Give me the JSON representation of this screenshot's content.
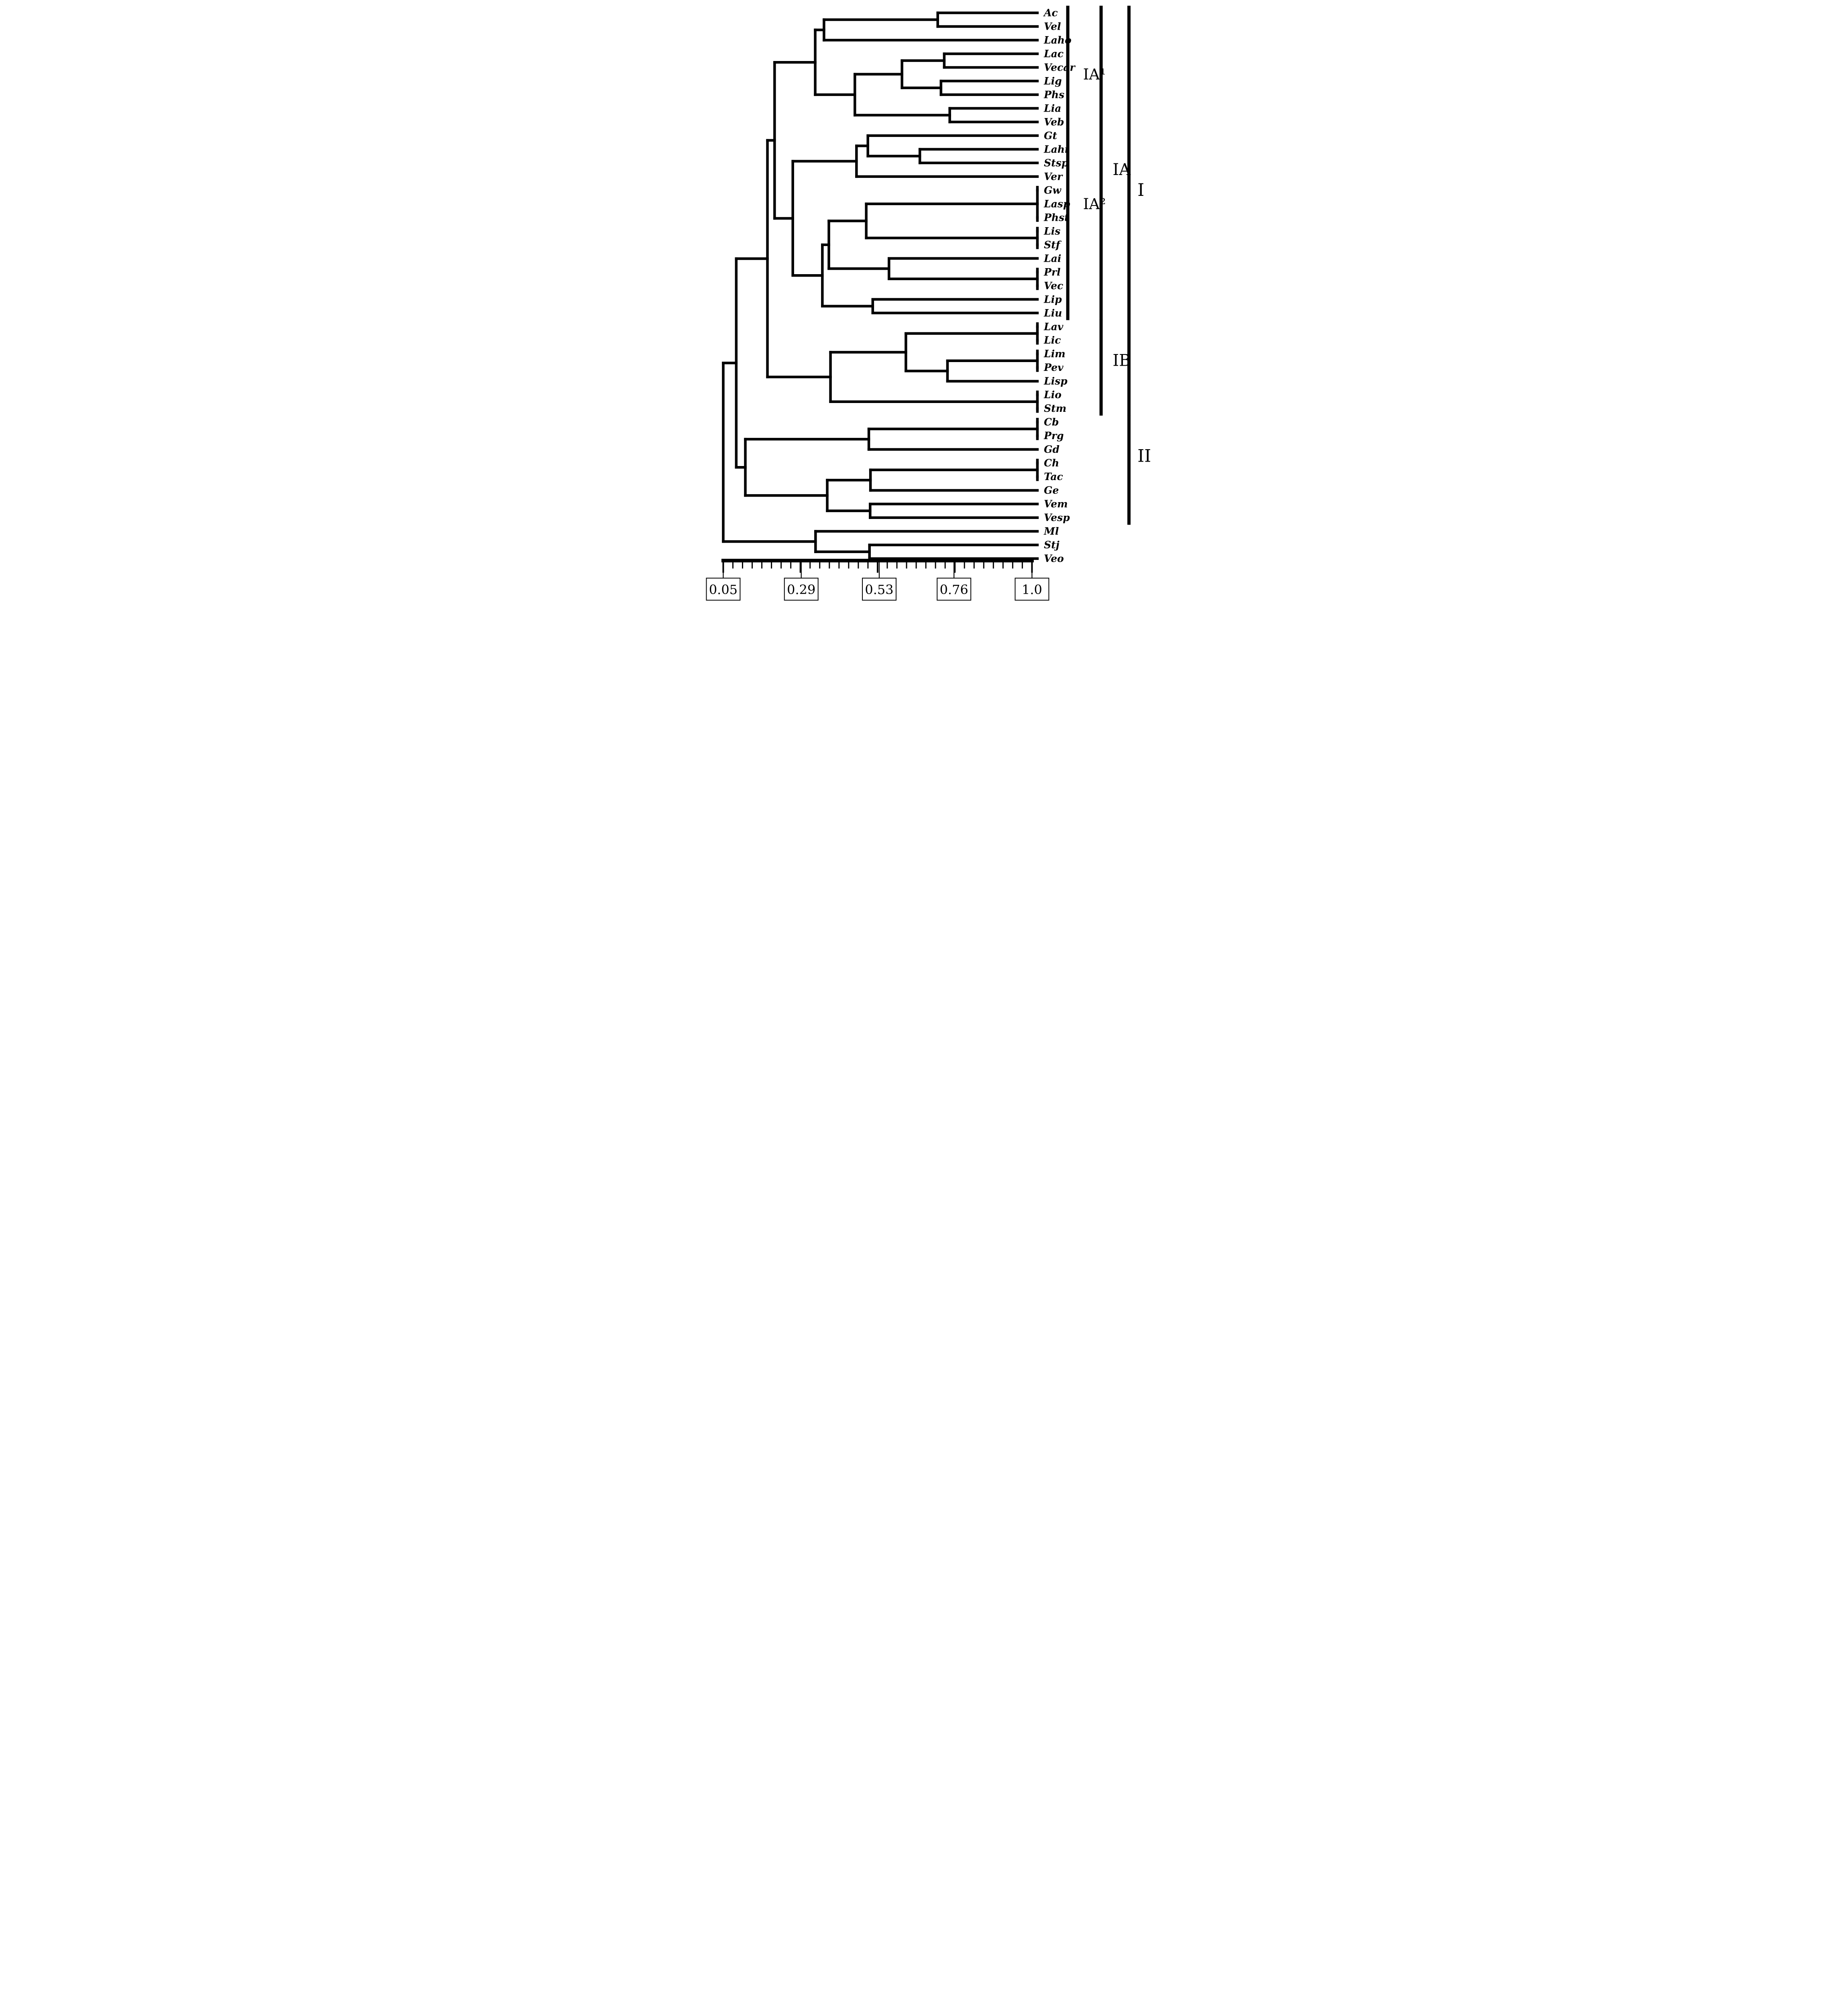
{
  "figure": {
    "kind": "UPGMA-style similarity dendrogram, leaves on right, scanned black-and-white scientific figure",
    "background_color": "#ffffff",
    "ink_color": "#000000"
  },
  "chart_data": {
    "type": "dendrogram",
    "orientation": "horizontal, root at left, similarity increasing to the right",
    "title": "",
    "xlabel": "",
    "ylabel": "",
    "axis": {
      "range": [
        0.05,
        1.0
      ],
      "boxed_tick_labels": [
        "0.05",
        "0.29",
        "0.53",
        "0.76",
        "1.0"
      ],
      "boxed_tick_values": [
        0.05,
        0.29,
        0.53,
        0.76,
        1.0
      ],
      "minor_tick_count": 33,
      "position": "bottom"
    },
    "leaves": [
      "Ac",
      "Vel",
      "Laho",
      "Lac",
      "Vecar",
      "Lig",
      "Phs",
      "Lia",
      "Veb",
      "Gt",
      "Lahi",
      "Stsp",
      "Ver",
      "Gw",
      "Lasp",
      "Phst",
      "Lis",
      "Stf",
      "Lai",
      "Prl",
      "Vec",
      "Lip",
      "Liu",
      "Lav",
      "Lic",
      "Lim",
      "Pev",
      "Lisp",
      "Lio",
      "Stm",
      "Cb",
      "Prg",
      "Gd",
      "Ch",
      "Tac",
      "Ge",
      "Vem",
      "Vesp",
      "Ml",
      "Stj",
      "Veo"
    ],
    "root": {
      "h": 0.05,
      "c": [
        {
          "h": 0.09,
          "c": [
            {
              "h": 0.186,
              "c": [
                {
                  "h": 0.208,
                  "c": [
                    {
                      "h": 0.333,
                      "c": [
                        {
                          "h": 0.36,
                          "c": [
                            {
                              "h": 0.71,
                              "c": [
                                "Ac",
                                "Vel"
                              ]
                            },
                            "Laho"
                          ]
                        },
                        {
                          "h": 0.455,
                          "c": [
                            {
                              "h": 0.6,
                              "c": [
                                {
                                  "h": 0.73,
                                  "c": [
                                    "Lac",
                                    "Vecar"
                                  ]
                                },
                                {
                                  "h": 0.72,
                                  "c": [
                                    "Lig",
                                    "Phs"
                                  ]
                                }
                              ]
                            },
                            {
                              "h": 0.747,
                              "c": [
                                "Lia",
                                "Veb"
                              ]
                            }
                          ]
                        }
                      ]
                    },
                    {
                      "h": 0.264,
                      "c": [
                        {
                          "h": 0.46,
                          "c": [
                            {
                              "h": 0.495,
                              "c": [
                                "Gt",
                                {
                                  "h": 0.655,
                                  "c": [
                                    "Lahi",
                                    "Stsp"
                                  ]
                                }
                              ]
                            },
                            "Ver"
                          ]
                        },
                        {
                          "h": 0.355,
                          "c": [
                            {
                              "h": 0.375,
                              "c": [
                                {
                                  "h": 0.49,
                                  "c": [
                                    {
                                      "h": 1.0,
                                      "c": [
                                        "Gw",
                                        "Lasp",
                                        "Phst"
                                      ]
                                    },
                                    {
                                      "h": 1.0,
                                      "c": [
                                        "Lis",
                                        "Stf"
                                      ]
                                    }
                                  ]
                                },
                                {
                                  "h": 0.56,
                                  "c": [
                                    "Lai",
                                    {
                                      "h": 1.0,
                                      "c": [
                                        "Prl",
                                        "Vec"
                                      ]
                                    }
                                  ]
                                }
                              ]
                            },
                            {
                              "h": 0.51,
                              "c": [
                                "Lip",
                                "Liu"
                              ]
                            }
                          ]
                        }
                      ]
                    }
                  ]
                },
                {
                  "h": 0.38,
                  "c": [
                    {
                      "h": 0.612,
                      "c": [
                        {
                          "h": 1.0,
                          "c": [
                            "Lav",
                            "Lic"
                          ]
                        },
                        {
                          "h": 0.74,
                          "c": [
                            {
                              "h": 1.0,
                              "c": [
                                "Lim",
                                "Pev"
                              ]
                            },
                            "Lisp"
                          ]
                        }
                      ]
                    },
                    {
                      "h": 1.0,
                      "c": [
                        "Lio",
                        "Stm"
                      ]
                    }
                  ]
                }
              ]
            },
            {
              "h": 0.118,
              "c": [
                {
                  "h": 0.498,
                  "c": [
                    {
                      "h": 1.0,
                      "c": [
                        "Cb",
                        "Prg"
                      ]
                    },
                    "Gd"
                  ]
                },
                {
                  "h": 0.37,
                  "c": [
                    {
                      "h": 0.503,
                      "c": [
                        {
                          "h": 1.0,
                          "c": [
                            "Ch",
                            "Tac"
                          ]
                        },
                        "Ge"
                      ]
                    },
                    {
                      "h": 0.502,
                      "c": [
                        "Vem",
                        "Vesp"
                      ]
                    }
                  ]
                }
              ]
            }
          ]
        },
        {
          "h": 0.334,
          "c": [
            "Ml",
            {
              "h": 0.5,
              "c": [
                "Stj",
                "Veo"
              ]
            }
          ]
        }
      ]
    },
    "identical_groups_at_1.0": [
      [
        "Gw",
        "Lasp",
        "Phst"
      ],
      [
        "Lis",
        "Stf"
      ],
      [
        "Prl",
        "Vec"
      ],
      [
        "Lav",
        "Lic"
      ],
      [
        "Lim",
        "Pev"
      ],
      [
        "Lio",
        "Stm"
      ],
      [
        "Cb",
        "Prg"
      ],
      [
        "Ch",
        "Tac"
      ]
    ],
    "groups": [
      {
        "label": "IA¹",
        "first": "Ac",
        "last": "Veb",
        "tier": 0,
        "anchor": [
          "Vecar",
          "Lig"
        ]
      },
      {
        "label": "IA²",
        "first": "Gt",
        "last": "Liu",
        "tier": 0,
        "anchor": [
          "Lasp"
        ]
      },
      {
        "label": "IA",
        "first": "Ac",
        "last": "Liu",
        "tier": 1,
        "anchor": [
          "Stsp",
          "Ver"
        ]
      },
      {
        "label": "IB",
        "first": "Lav",
        "last": "Stm",
        "tier": 1,
        "anchor": [
          "Lim",
          "Pev"
        ]
      },
      {
        "label": "I",
        "first": "Ac",
        "last": "Stm",
        "tier": 2,
        "anchor": [
          "Gw"
        ]
      },
      {
        "label": "II",
        "first": "Cb",
        "last": "Vesp",
        "tier": 2,
        "anchor": [
          "Gd",
          "Ch"
        ]
      }
    ]
  }
}
